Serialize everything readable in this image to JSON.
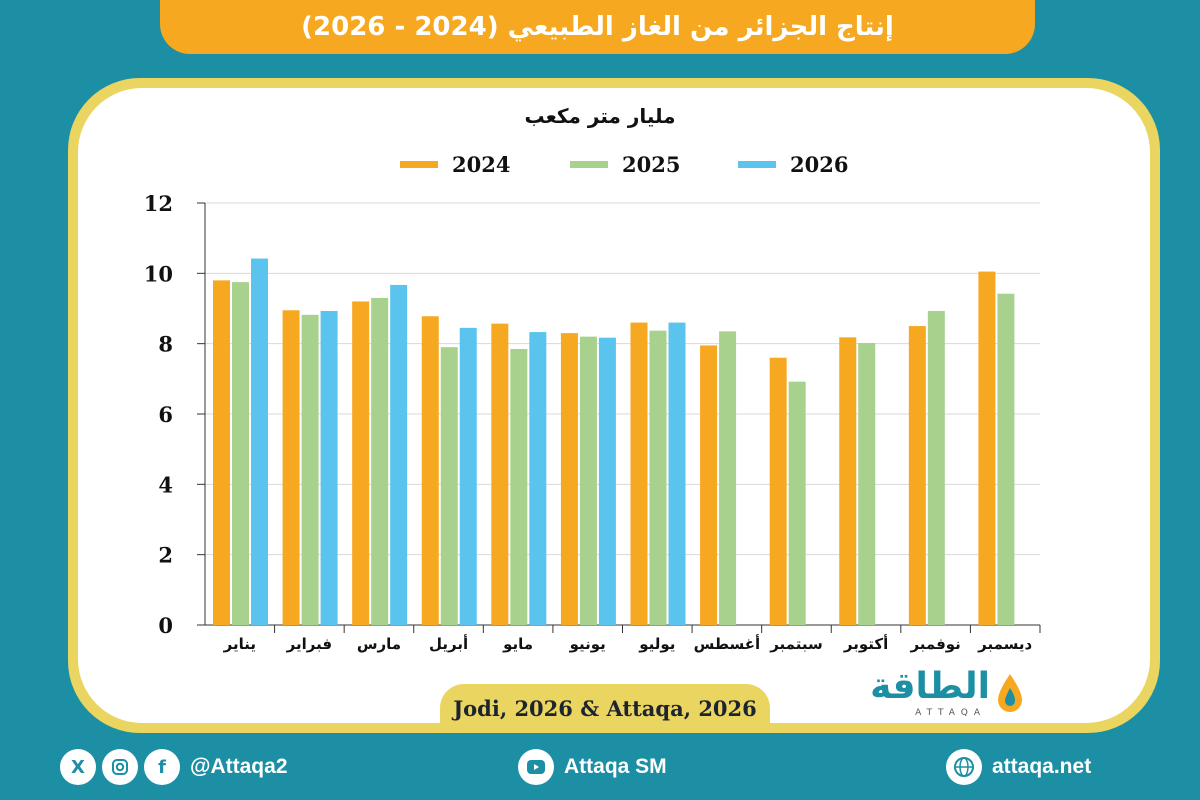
{
  "header": {
    "title": "إنتاج الجزائر من الغاز الطبيعي (2024 - 2026)"
  },
  "colors": {
    "s2024": "#f6a821",
    "s2025": "#a9d18e",
    "s2026": "#5bc4ee",
    "accent": "#1d8fa5",
    "frame": "#ead561"
  },
  "chart_data": {
    "type": "bar",
    "title": "",
    "ylabel": "مليار متر مكعب",
    "xlabel": "",
    "ylim": [
      0,
      12
    ],
    "yticks": [
      0,
      2,
      4,
      6,
      8,
      10,
      12
    ],
    "categories": [
      "يناير",
      "فبراير",
      "مارس",
      "أبريل",
      "مايو",
      "يونيو",
      "يوليو",
      "أغسطس",
      "سبتمبر",
      "أكتوبر",
      "نوفمبر",
      "ديسمبر"
    ],
    "series": [
      {
        "name": "2024",
        "color": "#f6a821",
        "values": [
          9.8,
          8.95,
          9.2,
          8.78,
          8.57,
          8.3,
          8.6,
          7.95,
          7.6,
          8.18,
          8.5,
          10.05
        ]
      },
      {
        "name": "2025",
        "color": "#a9d18e",
        "values": [
          9.75,
          8.82,
          9.3,
          7.9,
          7.85,
          8.2,
          8.37,
          8.35,
          6.92,
          8.02,
          8.93,
          9.42
        ]
      },
      {
        "name": "2026",
        "color": "#5bc4ee",
        "values": [
          10.42,
          8.93,
          9.67,
          8.45,
          8.33,
          8.17,
          8.6,
          null,
          null,
          null,
          null,
          null
        ]
      }
    ],
    "grid": true,
    "legend_position": "top"
  },
  "source": {
    "text": "Jodi, 2026 & Attaqa, 2026"
  },
  "logo": {
    "arabic": "الطاقة",
    "latin": "ATTAQA"
  },
  "footer": {
    "social_handle": "@Attaqa2",
    "youtube": "Attaqa SM",
    "website": "attaqa.net",
    "icons": [
      "x-icon",
      "instagram-icon",
      "facebook-icon",
      "youtube-icon",
      "globe-icon"
    ]
  }
}
